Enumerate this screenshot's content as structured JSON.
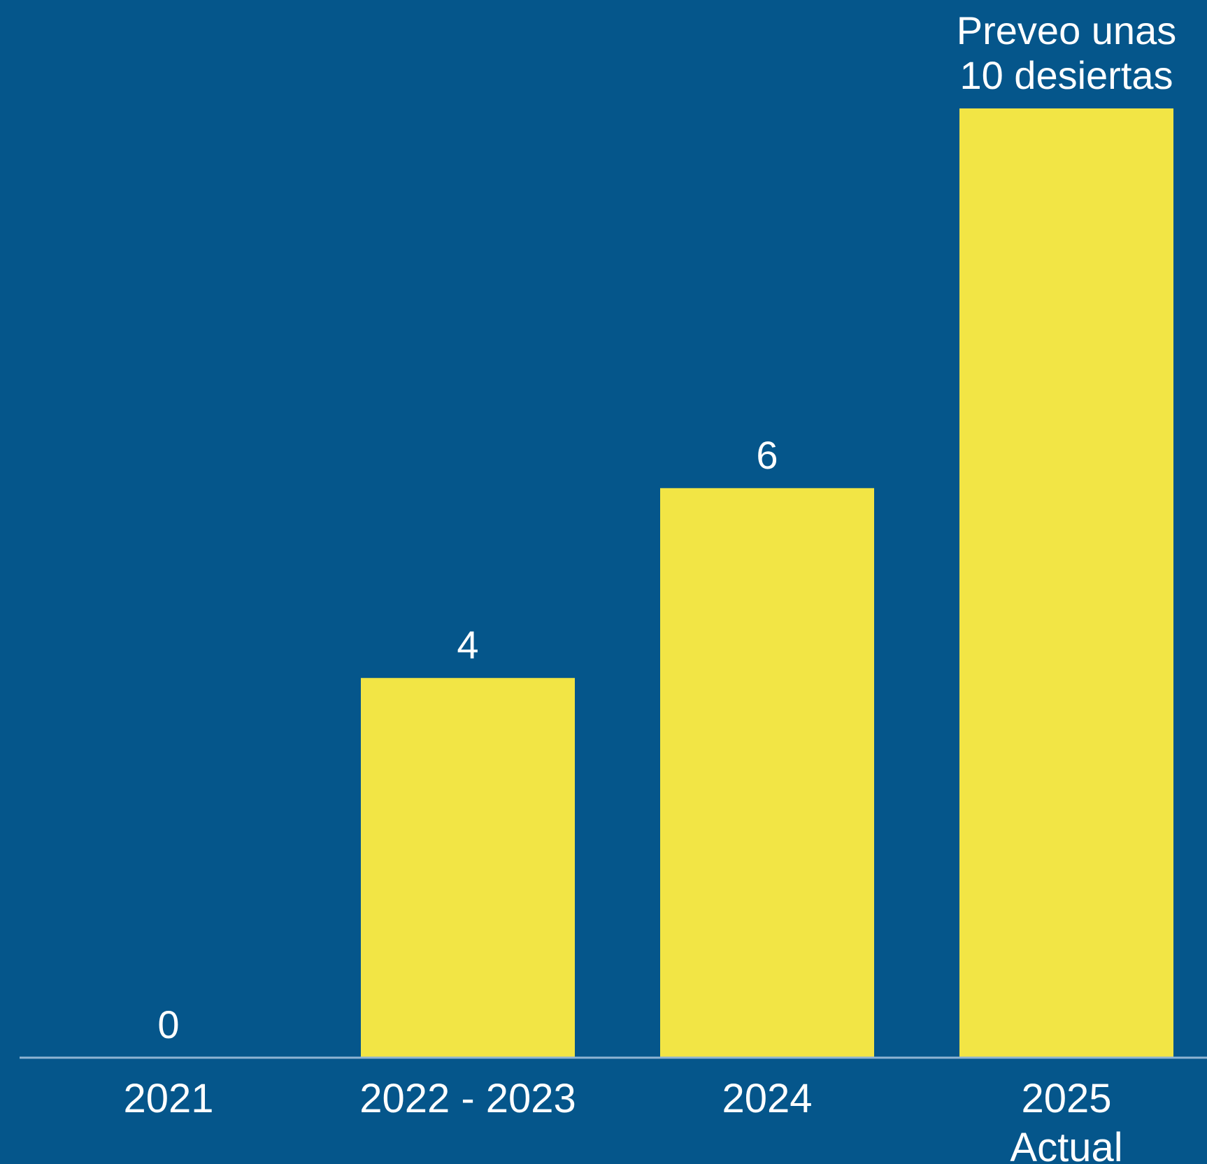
{
  "chart_data": {
    "type": "bar",
    "categories": [
      "2021",
      "2022 - 2023",
      "2024",
      "2025"
    ],
    "category_sublabels": [
      "",
      "",
      "",
      "Actual"
    ],
    "values": [
      0,
      4,
      6,
      10
    ],
    "data_labels": [
      "0",
      "4",
      "6",
      "Preveo unas\n10 desiertas"
    ],
    "title": "",
    "xlabel": "",
    "ylabel": "",
    "ylim": [
      0,
      10
    ],
    "grid": false,
    "legend": "none",
    "colors": {
      "background": "#05568B",
      "bar": "#F2E545",
      "axis_line": "#8FB4D3",
      "text": "#FFFFFF"
    }
  }
}
